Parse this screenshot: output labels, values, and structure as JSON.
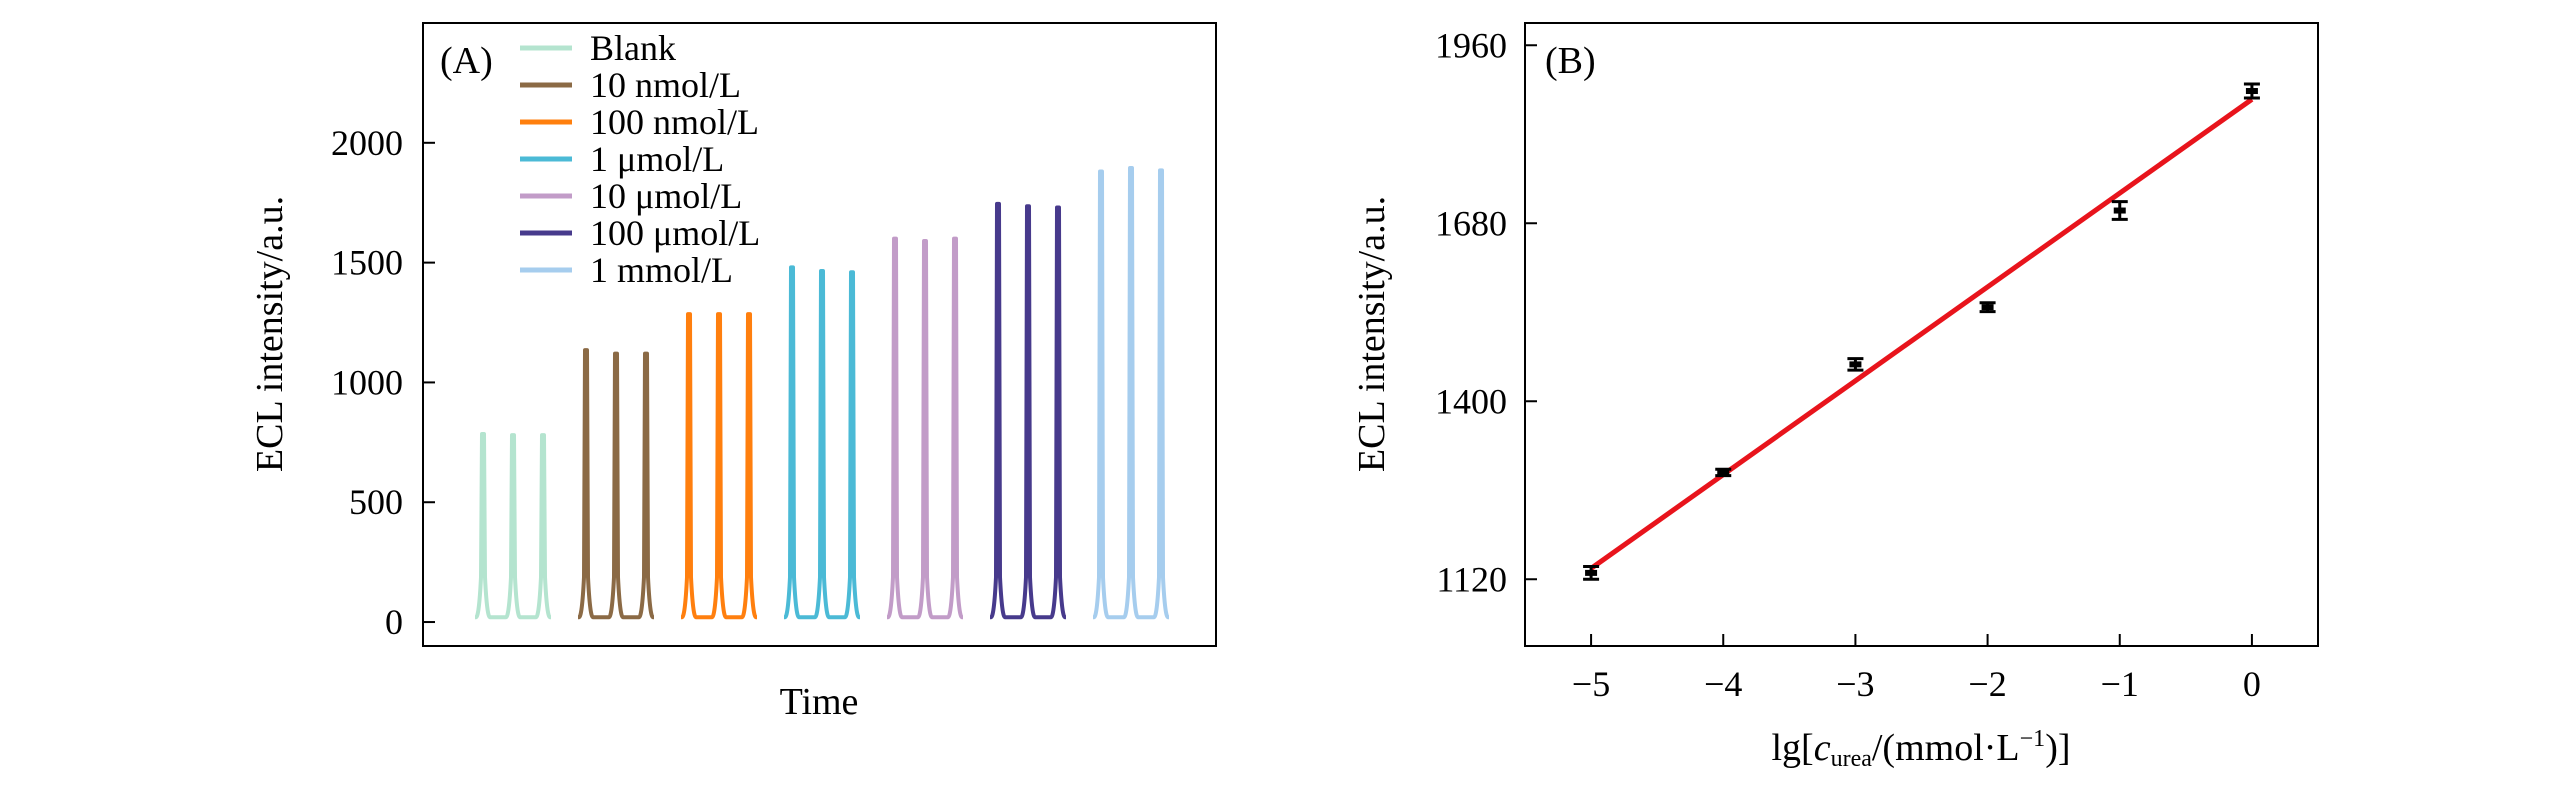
{
  "chart_data": [
    {
      "panel": "(A)",
      "type": "line",
      "xlabel": "Time",
      "ylabel": "ECL intensity/a.u.",
      "ylim": [
        -100,
        2500
      ],
      "yticks": [
        0,
        500,
        1000,
        1500,
        2000
      ],
      "ytick_labels": [
        "0",
        "500",
        "1000",
        "1500",
        "2000"
      ],
      "xticks_shown": false,
      "baseline": 20,
      "peaks_per_series": 3,
      "legend_position": "top-left",
      "series": [
        {
          "name": "Blank",
          "color": "#b4e4cf",
          "peaks": [
            785,
            780,
            780
          ]
        },
        {
          "name": "10 nmol/L",
          "color": "#8b6a45",
          "peaks": [
            1135,
            1120,
            1120
          ]
        },
        {
          "name": "100 nmol/L",
          "color": "#ff7f0e",
          "peaks": [
            1285,
            1285,
            1285
          ]
        },
        {
          "name": "1 μmol/L",
          "color": "#4bbad6",
          "peaks": [
            1480,
            1465,
            1460
          ]
        },
        {
          "name": "10 μmol/L",
          "color": "#c29cc8",
          "peaks": [
            1600,
            1590,
            1600
          ]
        },
        {
          "name": "100 μmol/L",
          "color": "#473a8c",
          "peaks": [
            1745,
            1735,
            1730
          ]
        },
        {
          "name": "1 mmol/L",
          "color": "#a6cdee",
          "peaks": [
            1880,
            1895,
            1885
          ]
        }
      ]
    },
    {
      "panel": "(B)",
      "type": "scatter",
      "xlabel_main": "lg[",
      "xlabel_var": "c",
      "xlabel_sub": "urea",
      "xlabel_rest": "/(mmol·L",
      "xlabel_sup": "−1",
      "xlabel_end": ")]",
      "ylabel": "ECL intensity/a.u.",
      "xlim": [
        -5.5,
        0.5
      ],
      "ylim": [
        1015,
        1995
      ],
      "xticks": [
        -5,
        -4,
        -3,
        -2,
        -1,
        0
      ],
      "xtick_labels": [
        "−5",
        "−4",
        "−3",
        "−2",
        "−1",
        "0"
      ],
      "yticks": [
        1120,
        1400,
        1680,
        1960
      ],
      "ytick_labels": [
        "1120",
        "1400",
        "1680",
        "1960"
      ],
      "points": [
        {
          "x": -5,
          "y": 1130,
          "err": 10
        },
        {
          "x": -4,
          "y": 1288,
          "err": 5
        },
        {
          "x": -3,
          "y": 1458,
          "err": 9
        },
        {
          "x": -2,
          "y": 1548,
          "err": 7
        },
        {
          "x": -1,
          "y": 1700,
          "err": 14
        },
        {
          "x": 0,
          "y": 1888,
          "err": 11
        }
      ],
      "fit_line": {
        "color": "#e8141c",
        "x": [
          -5,
          0
        ],
        "y": [
          1137,
          1875
        ]
      },
      "marker_color": "#000000"
    }
  ]
}
